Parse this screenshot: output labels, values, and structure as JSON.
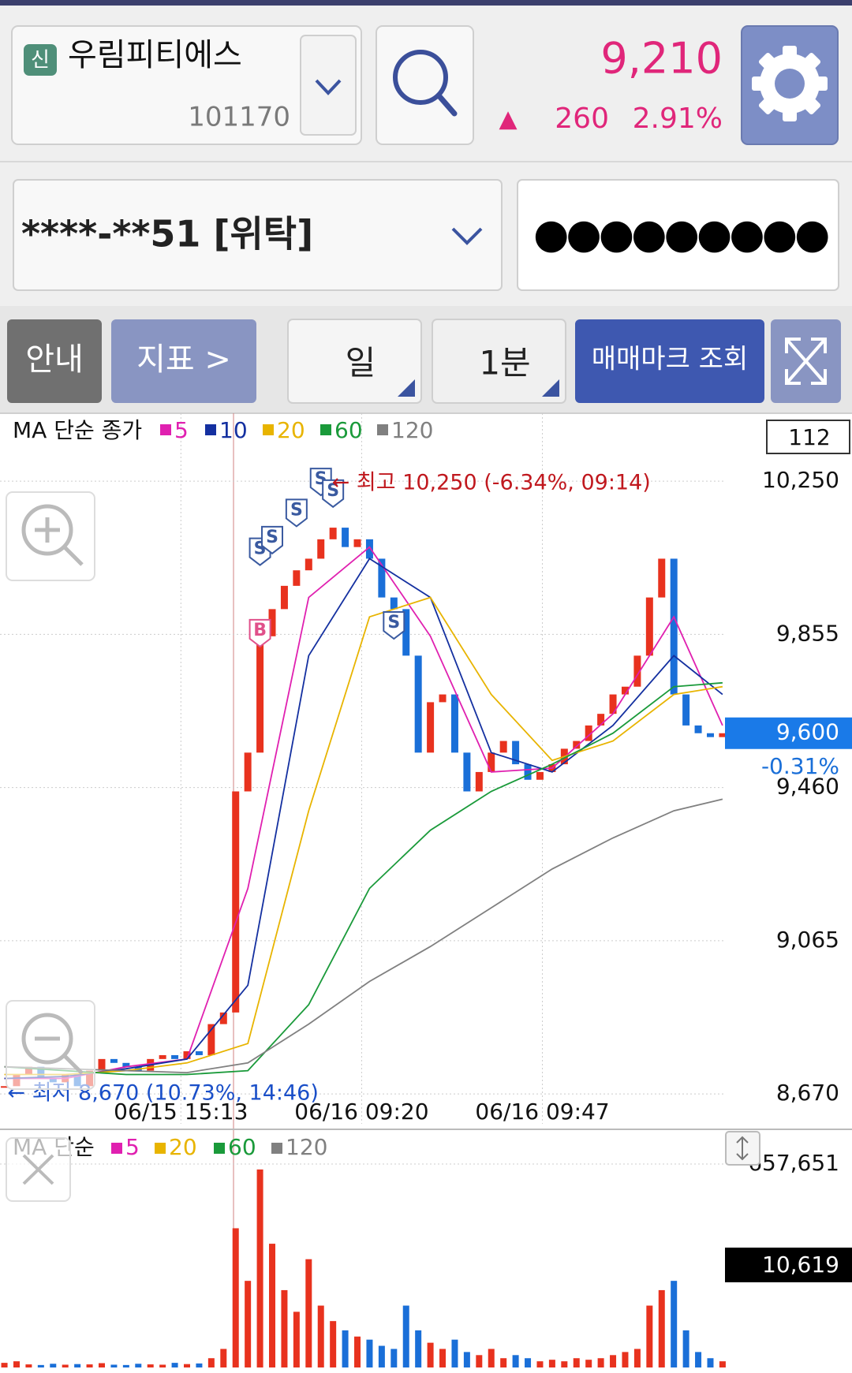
{
  "header": {
    "badge": "신",
    "name": "우림피티에스",
    "code": "101170",
    "price": "9,210",
    "arrow": "▲",
    "change": "260",
    "change_rate": "2.91%"
  },
  "account": {
    "number": "****-**51 [위탁]",
    "password": "●●●●●●●●●"
  },
  "toolbar": {
    "info": "안내",
    "indicator": "지표 >",
    "period": "일",
    "interval": "1분",
    "trade_mark": "매매마크 조회"
  },
  "chart_data": [
    {
      "type": "candlestick",
      "legend_title": "MA 단순 종가",
      "up_color": "#e8321e",
      "down_color": "#1a6fd8",
      "grid": true,
      "values": [
        8690,
        8720,
        8740,
        8710,
        8700,
        8720,
        8690,
        8730,
        8760,
        8750,
        8740,
        8730,
        8760,
        8770,
        8760,
        8780,
        8770,
        8850,
        8880,
        9450,
        9550,
        9850,
        9920,
        9980,
        10020,
        10050,
        10100,
        10130,
        10080,
        10100,
        10050,
        9950,
        9920,
        9800,
        9550,
        9680,
        9700,
        9550,
        9450,
        9500,
        9550,
        9580,
        9520,
        9480,
        9500,
        9520,
        9560,
        9580,
        9620,
        9650,
        9700,
        9720,
        9800,
        9950,
        10050,
        9700,
        9620,
        9600,
        9590,
        9600
      ],
      "ma_x": [
        0,
        5,
        10,
        15,
        20,
        25,
        30,
        35,
        40,
        45,
        50,
        55,
        59
      ],
      "series": [
        {
          "name": "5",
          "color": "#e020b0",
          "values": [
            8710,
            8710,
            8740,
            8760,
            9200,
            9950,
            10080,
            9850,
            9500,
            9510,
            9650,
            9900,
            9620
          ]
        },
        {
          "name": "10",
          "color": "#1430a0",
          "values": [
            8710,
            8715,
            8735,
            8760,
            8950,
            9800,
            10050,
            9950,
            9550,
            9500,
            9620,
            9800,
            9700
          ]
        },
        {
          "name": "20",
          "color": "#e8b400",
          "values": [
            8720,
            8720,
            8730,
            8750,
            8800,
            9400,
            9900,
            9950,
            9700,
            9530,
            9580,
            9700,
            9720
          ]
        },
        {
          "name": "60",
          "color": "#1a9a3a",
          "values": [
            8740,
            8730,
            8720,
            8720,
            8730,
            8900,
            9200,
            9350,
            9450,
            9520,
            9600,
            9720,
            9730
          ]
        },
        {
          "name": "120",
          "color": "#808080",
          "values": [
            8740,
            8735,
            8730,
            8725,
            8750,
            8850,
            8960,
            9050,
            9150,
            9250,
            9330,
            9400,
            9430
          ]
        }
      ],
      "xlim": [
        -0.36,
        59.2
      ],
      "xticks": [
        {
          "value": 14.5,
          "label": "06/15 15:13"
        },
        {
          "value": 29.35,
          "label": "06/16 09:20"
        },
        {
          "value": 44.2,
          "label": "06/16 09:47"
        }
      ],
      "ylim": [
        8593,
        10425
      ],
      "yticks": [
        {
          "value": 10250,
          "label": "10,250"
        },
        {
          "value": 9855,
          "label": "9,855"
        },
        {
          "value": 9460,
          "label": "9,460"
        },
        {
          "value": 9065,
          "label": "9,065"
        },
        {
          "value": 8670,
          "label": "8,670"
        }
      ],
      "count_label": "112",
      "current": {
        "value": 9600,
        "label": "9,600"
      },
      "current_change": "-0.31%",
      "high": {
        "text": "← 최고 10,250 (-6.34%, 09:14)",
        "index": 26,
        "value": 10250
      },
      "low": {
        "text": "← 최저 8,670 (10.73%, 14:46)",
        "index": 0,
        "value": 8670
      },
      "trade_marks": [
        {
          "label": "B",
          "index": 21,
          "value": 9860
        },
        {
          "label": "S",
          "index": 21,
          "value": 10070
        },
        {
          "label": "S",
          "index": 22,
          "value": 10100
        },
        {
          "label": "S",
          "index": 24,
          "value": 10170
        },
        {
          "label": "S",
          "index": 26,
          "value": 10250
        },
        {
          "label": "S",
          "index": 27,
          "value": 10220
        },
        {
          "label": "S",
          "index": 32,
          "value": 9880
        }
      ]
    },
    {
      "type": "volume",
      "legend_title": "MA 단순",
      "legend": [
        {
          "name": "5",
          "color": "#e020b0"
        },
        {
          "name": "20",
          "color": "#e8b400"
        },
        {
          "name": "60",
          "color": "#1a9a3a"
        },
        {
          "name": "120",
          "color": "#808080"
        }
      ],
      "values": [
        15000,
        20000,
        10000,
        8000,
        12000,
        9000,
        11000,
        10000,
        14000,
        9000,
        8000,
        12000,
        10000,
        9000,
        15000,
        11000,
        13000,
        30000,
        60000,
        450000,
        280000,
        640000,
        400000,
        250000,
        180000,
        350000,
        200000,
        150000,
        120000,
        100000,
        90000,
        70000,
        60000,
        200000,
        120000,
        80000,
        60000,
        90000,
        50000,
        40000,
        60000,
        30000,
        40000,
        30000,
        20000,
        25000,
        20000,
        30000,
        25000,
        30000,
        40000,
        50000,
        60000,
        200000,
        250000,
        280000,
        120000,
        50000,
        30000,
        20000
      ],
      "xlim": [
        -0.36,
        59.2
      ],
      "ylim": [
        0,
        657651
      ],
      "yticks": [
        {
          "value": 657651,
          "label": "657,651"
        }
      ],
      "current_label": "10,619"
    }
  ]
}
